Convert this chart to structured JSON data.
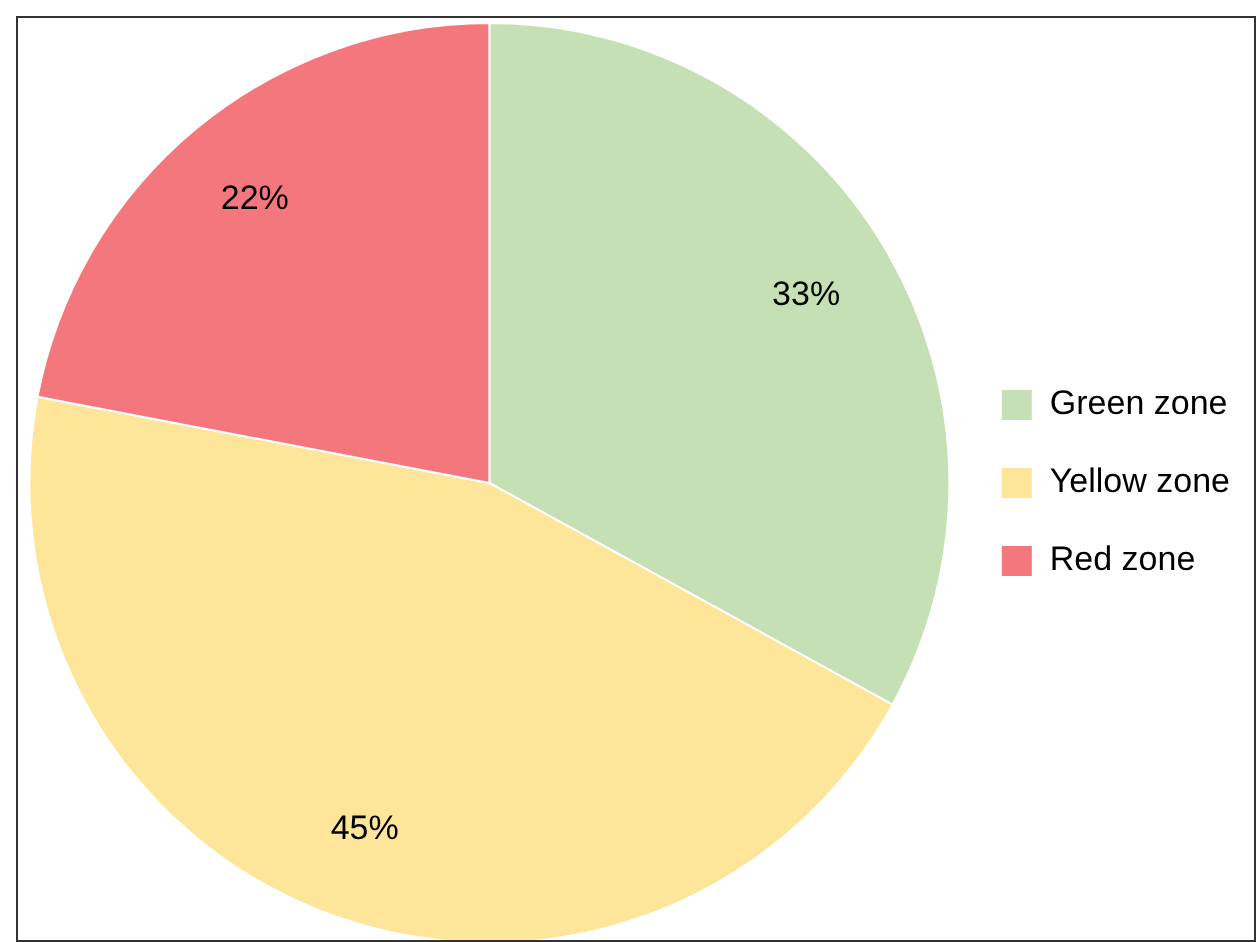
{
  "chart_data": {
    "type": "pie",
    "categories": [
      "Green zone",
      "Yellow zone",
      "Red zone"
    ],
    "values": [
      33,
      45,
      22
    ],
    "colors": [
      "#c5e0b4",
      "#fde699",
      "#f4777d"
    ],
    "value_labels": [
      "33%",
      "45%",
      "22%"
    ],
    "legend": "right"
  }
}
